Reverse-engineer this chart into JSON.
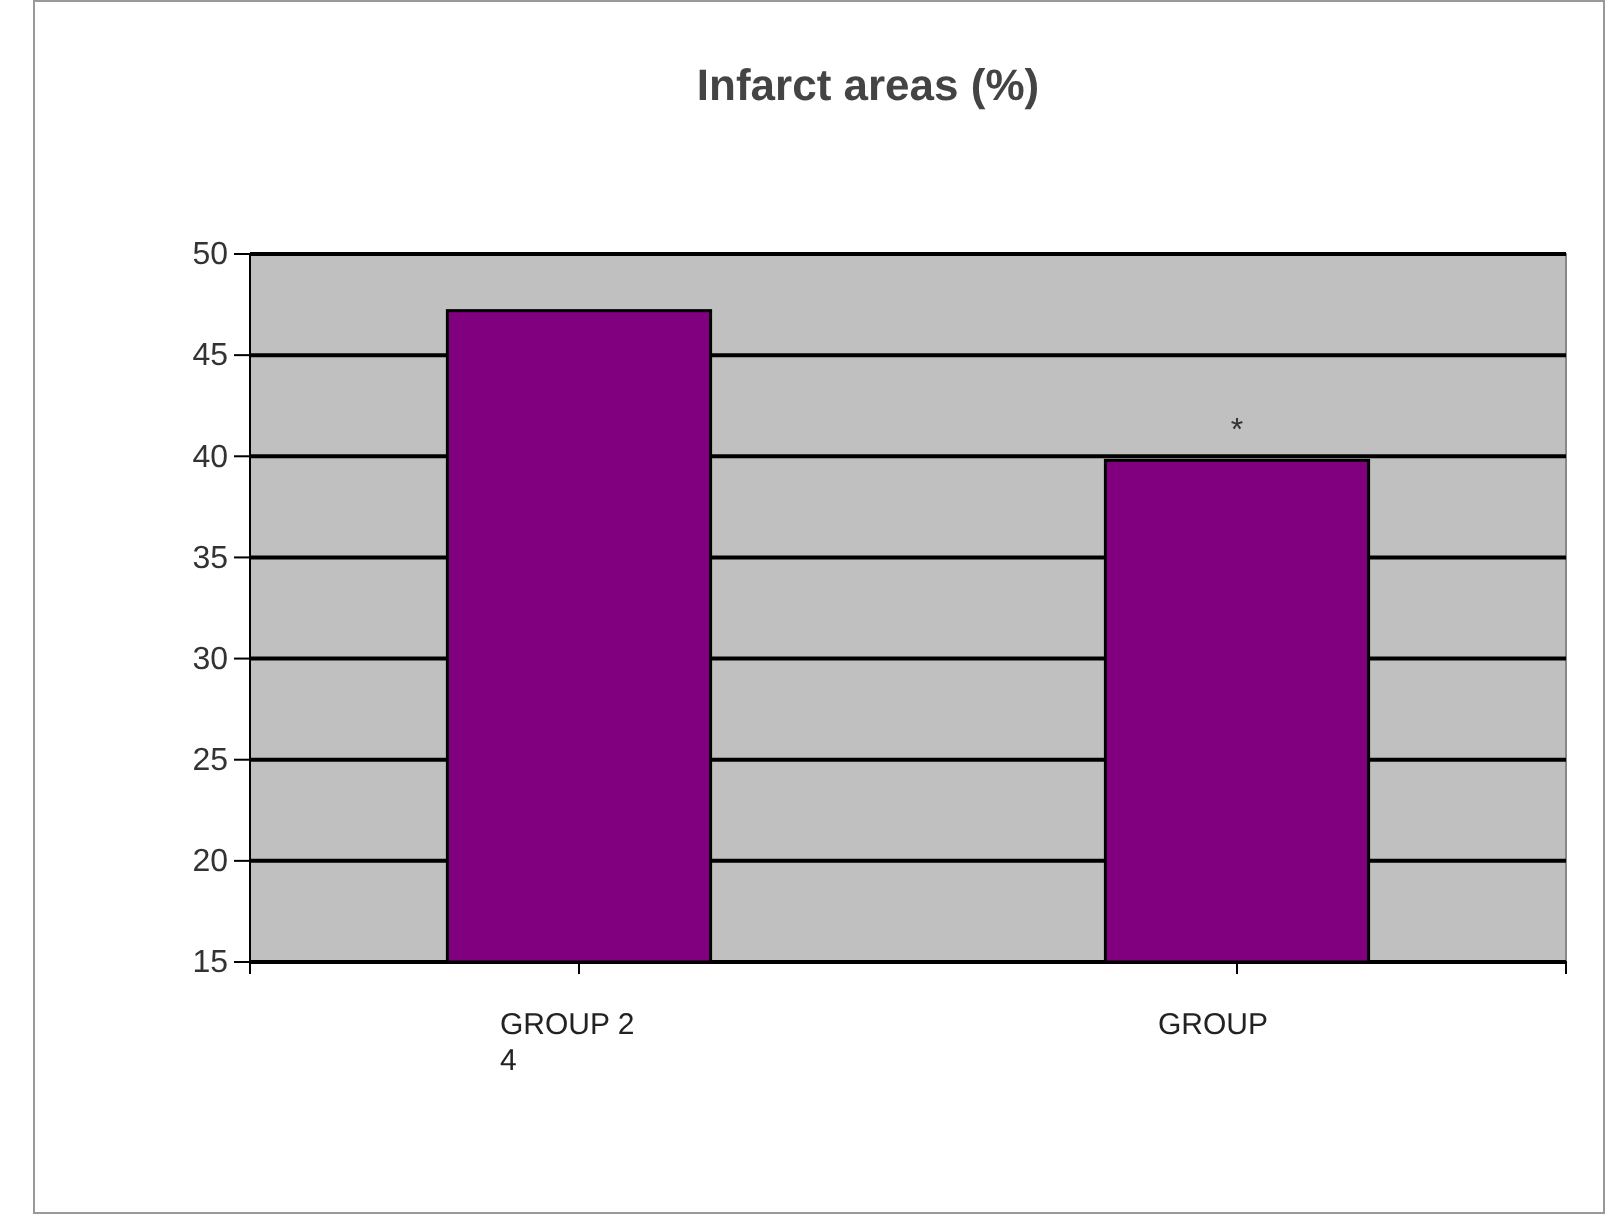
{
  "chart_data": {
    "type": "bar",
    "title": "Infarct areas (%)",
    "categories": [
      "GROUP 2 4",
      "GROUP"
    ],
    "values": [
      47.2,
      39.8
    ],
    "color": "#800080",
    "ylim": [
      15,
      50
    ],
    "yticks": [
      15,
      20,
      25,
      30,
      35,
      40,
      45,
      50
    ],
    "grid": "y",
    "annotations": [
      "*"
    ]
  }
}
